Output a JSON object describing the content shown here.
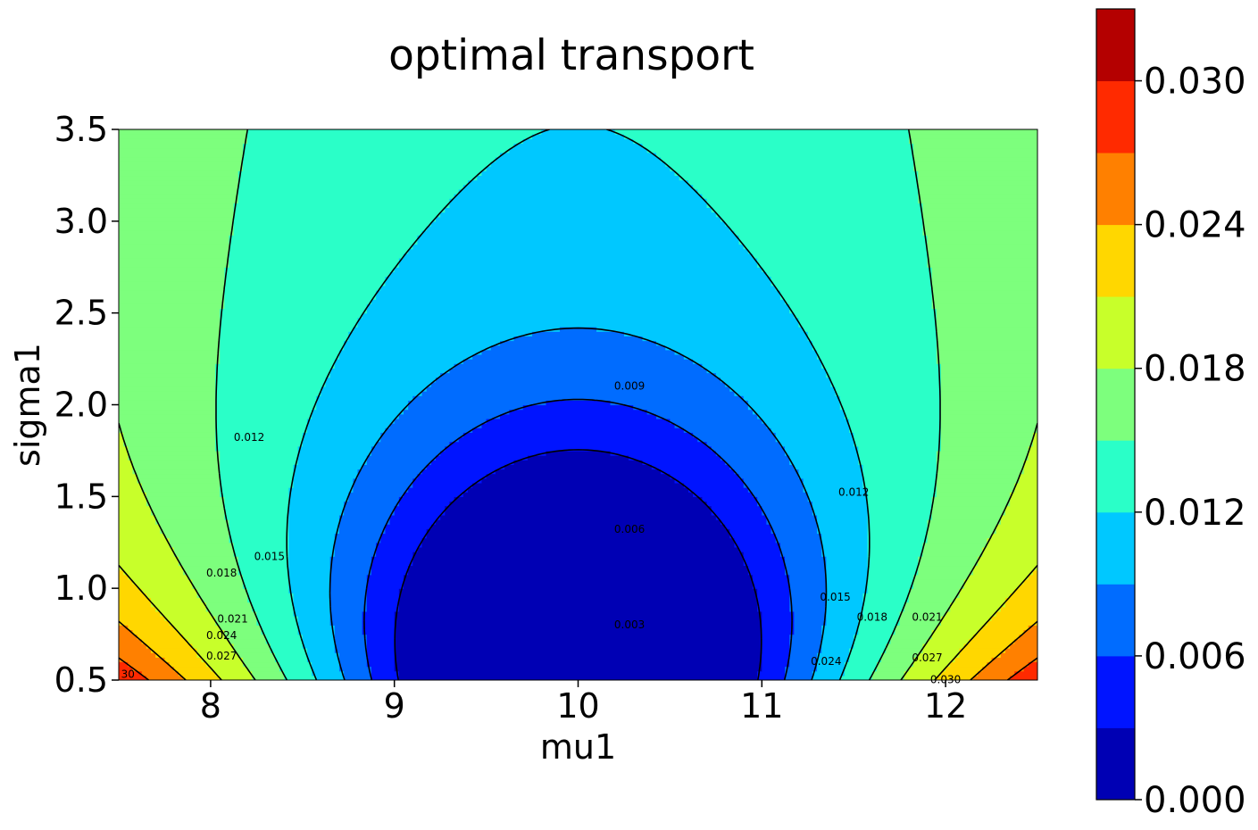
{
  "chart_data": {
    "type": "contourf",
    "title": "optimal transport",
    "xlabel": "mu1",
    "ylabel": "sigma1",
    "xlim": [
      7.5,
      12.5
    ],
    "ylim": [
      0.5,
      3.5
    ],
    "x_ticks": [
      "8",
      "9",
      "10",
      "11",
      "12"
    ],
    "y_ticks": [
      "0.5",
      "1.0",
      "1.5",
      "2.0",
      "2.5",
      "3.0",
      "3.5"
    ],
    "levels": [
      0.0,
      0.003,
      0.006,
      0.009,
      0.012,
      0.015,
      0.018,
      0.021,
      0.024,
      0.027,
      0.03,
      0.033
    ],
    "level_colors": [
      "#0000b4",
      "#0014ff",
      "#006cff",
      "#00c8ff",
      "#2affc8",
      "#7dff7d",
      "#c8ff2a",
      "#ffd700",
      "#ff8000",
      "#ff2a00",
      "#b40000"
    ],
    "colorbar_ticks": [
      "0.000",
      "0.006",
      "0.012",
      "0.018",
      "0.024",
      "0.030"
    ],
    "contour_labels": [
      {
        "text": "0.009",
        "x": 10.28,
        "y": 2.1
      },
      {
        "text": "0.006",
        "x": 10.28,
        "y": 1.32
      },
      {
        "text": "0.003",
        "x": 10.28,
        "y": 0.8
      },
      {
        "text": "0.012",
        "x": 8.21,
        "y": 1.82
      },
      {
        "text": "0.012",
        "x": 11.5,
        "y": 1.52
      },
      {
        "text": "0.015",
        "x": 8.32,
        "y": 1.17
      },
      {
        "text": "0.015",
        "x": 11.4,
        "y": 0.95
      },
      {
        "text": "0.018",
        "x": 8.06,
        "y": 1.08
      },
      {
        "text": "0.018",
        "x": 11.6,
        "y": 0.84
      },
      {
        "text": "0.021",
        "x": 8.12,
        "y": 0.83
      },
      {
        "text": "0.021",
        "x": 11.9,
        "y": 0.84
      },
      {
        "text": "0.024",
        "x": 8.06,
        "y": 0.74
      },
      {
        "text": "0.024",
        "x": 11.35,
        "y": 0.6
      },
      {
        "text": "0.027",
        "x": 8.06,
        "y": 0.63
      },
      {
        "text": "0.027",
        "x": 11.9,
        "y": 0.62
      },
      {
        "text": "0.030",
        "x": 12.0,
        "y": 0.5
      },
      {
        "text": "30",
        "x": 7.55,
        "y": 0.53
      }
    ]
  }
}
